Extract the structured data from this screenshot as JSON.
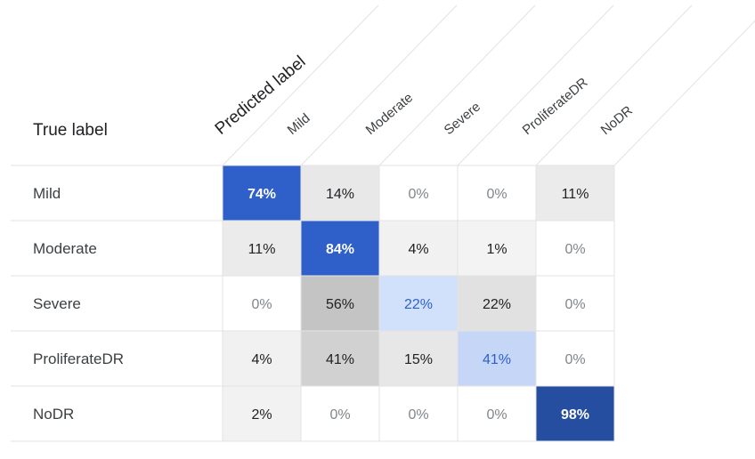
{
  "chart_data": {
    "type": "heatmap",
    "row_axis_title": "True label",
    "column_axis_title": "Predicted label",
    "rows": [
      "Mild",
      "Moderate",
      "Severe",
      "ProliferateDR",
      "NoDR"
    ],
    "columns": [
      "Mild",
      "Moderate",
      "Severe",
      "ProliferateDR",
      "NoDR"
    ],
    "values": [
      [
        74,
        14,
        0,
        0,
        11
      ],
      [
        11,
        84,
        4,
        1,
        0
      ],
      [
        0,
        56,
        22,
        22,
        0
      ],
      [
        4,
        41,
        15,
        41,
        0
      ],
      [
        2,
        0,
        0,
        0,
        98
      ]
    ],
    "value_suffix": "%",
    "colors": {
      "diagonal_high": "#2f5fc8",
      "diagonal_highest": "#254ea1",
      "diagonal_low": "#d2e1fb",
      "diagonal_mid": "#c5d6f7",
      "offdiagonal_scale_light": "#f4f4f4",
      "offdiagonal_scale_dark": "#c4c4c4",
      "zero_cell": "#ffffff",
      "grid_line": "#e3e3e3"
    }
  }
}
